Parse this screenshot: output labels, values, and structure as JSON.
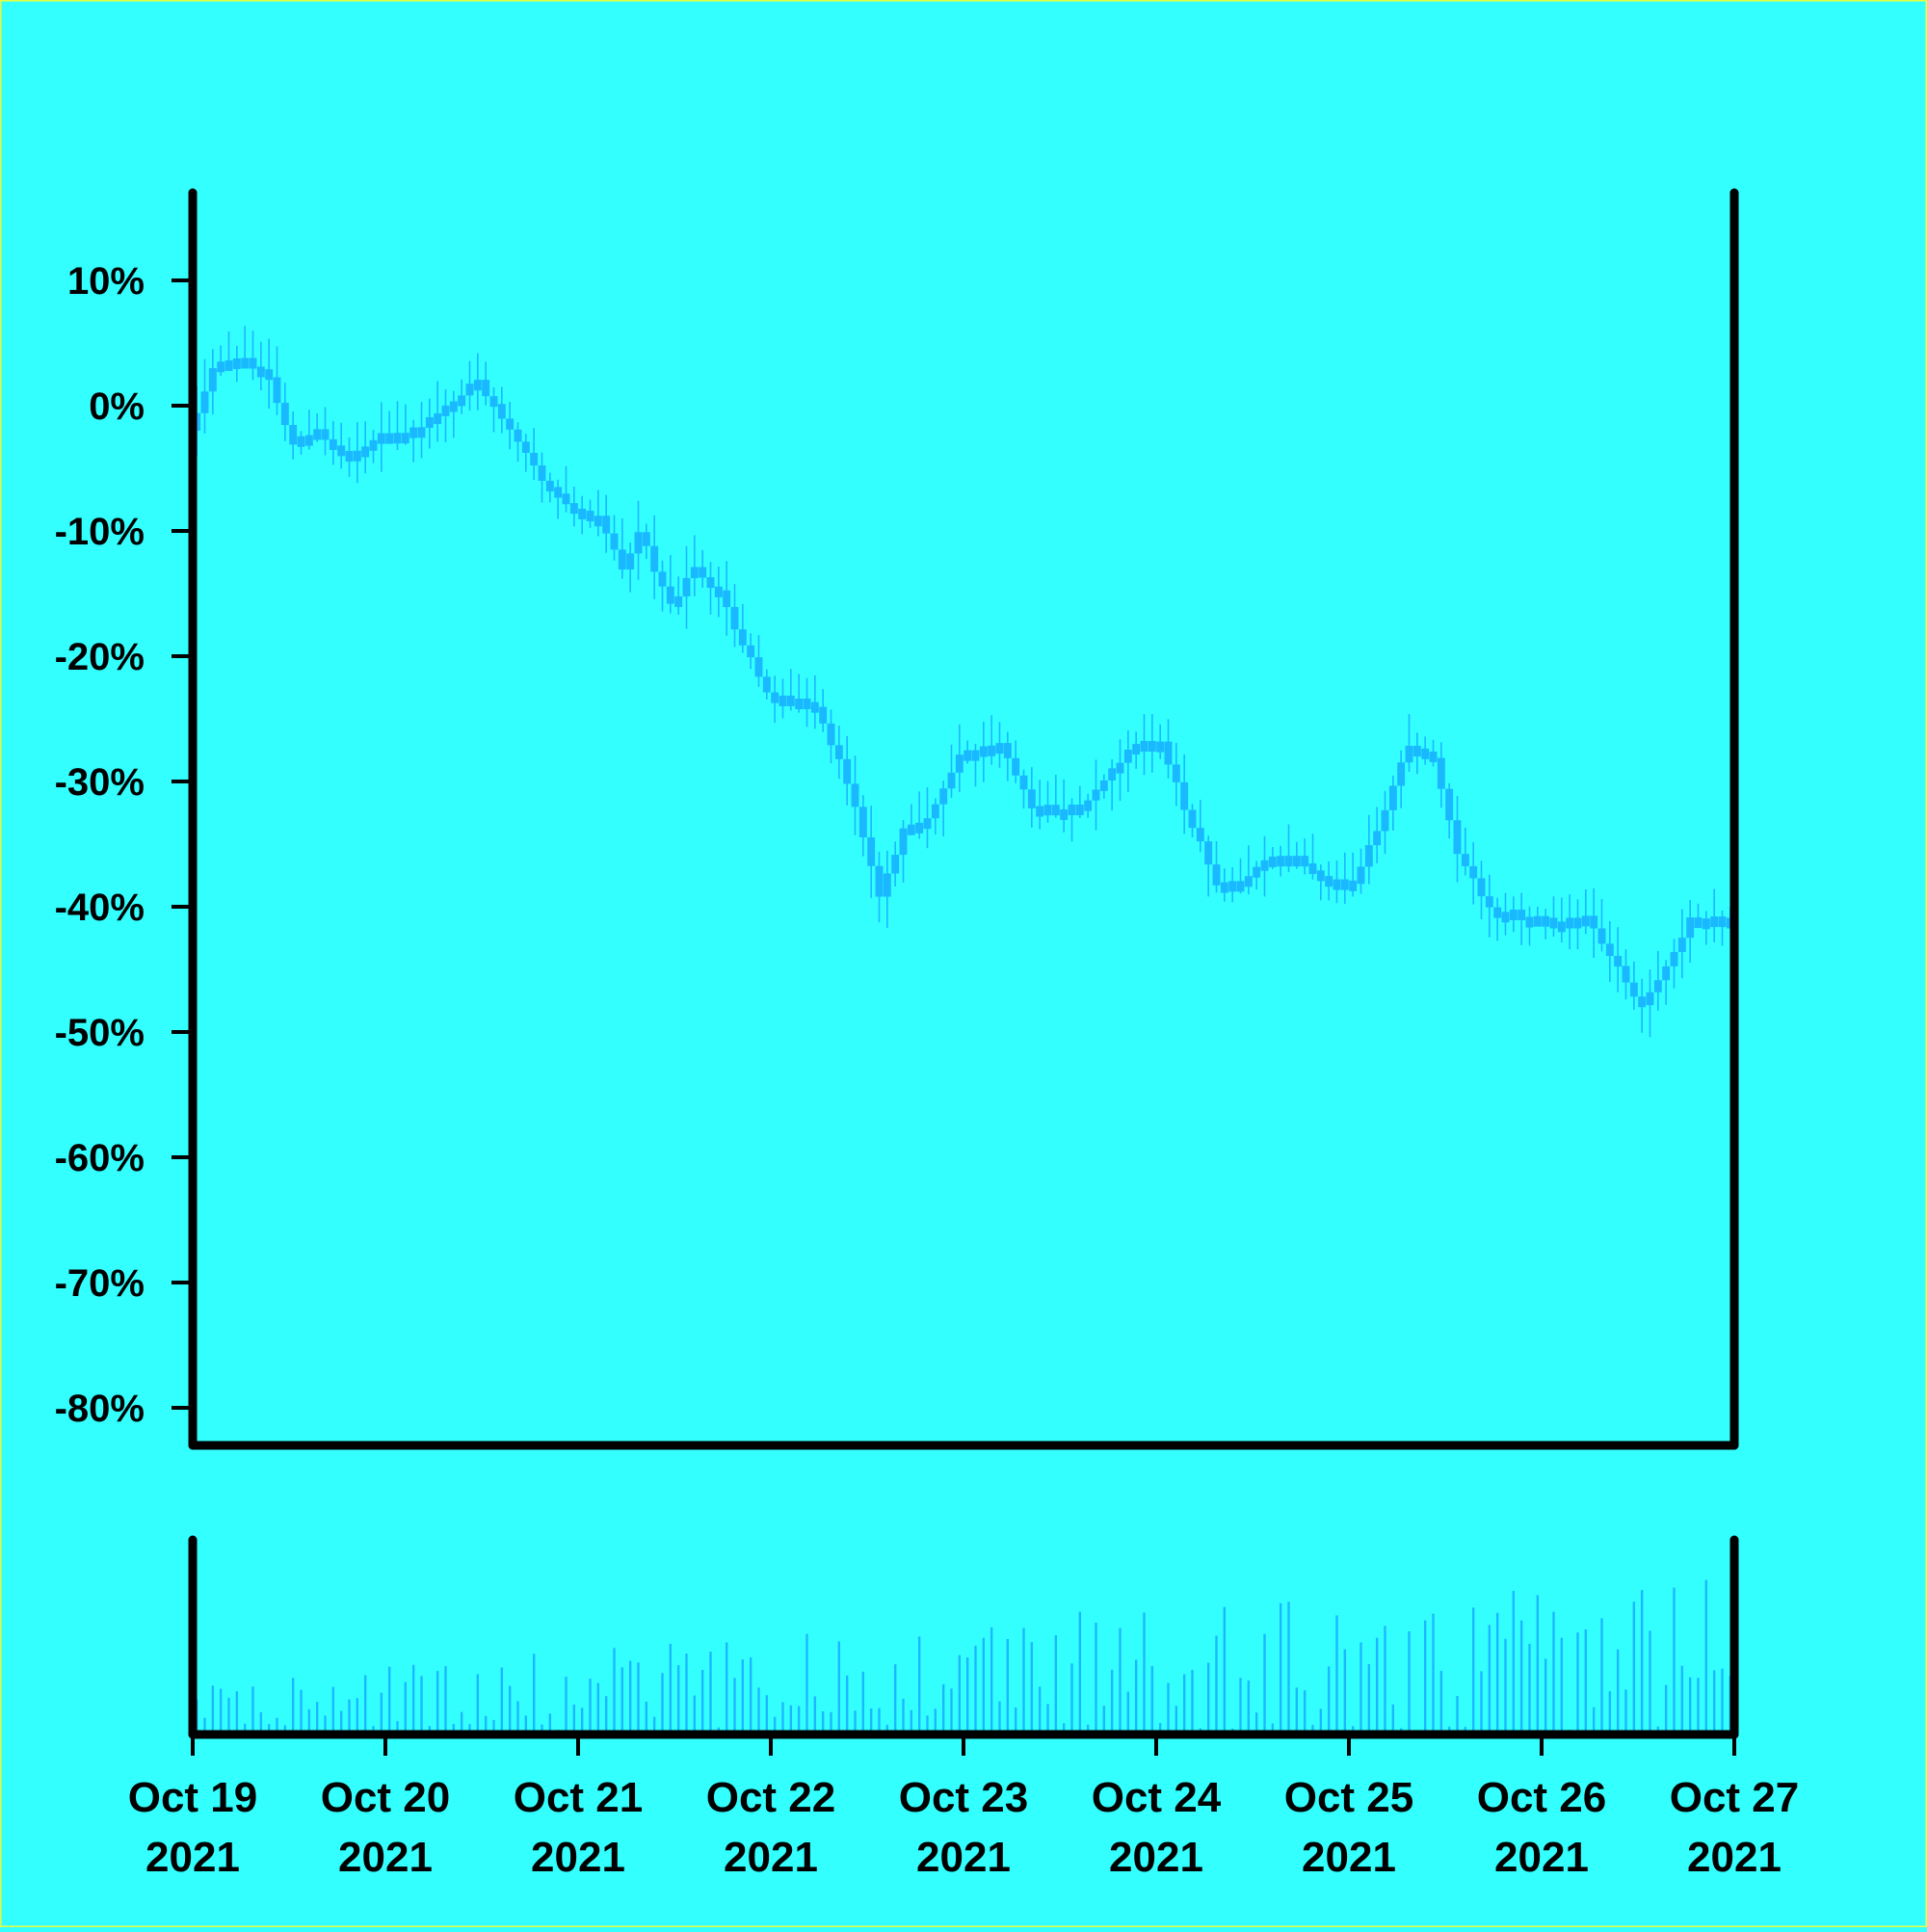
{
  "chart_data": {
    "type": "candlestick",
    "title": "",
    "xlabel": "",
    "ylabel": "",
    "background": "#33ffff",
    "candle_color": "#1ab8ff",
    "axis_color": "#000000",
    "y_axis": {
      "ylim": [
        -83,
        17
      ],
      "ticks": [
        10,
        0,
        -10,
        -20,
        -30,
        -40,
        -50,
        -60,
        -70,
        -80
      ],
      "tick_labels": [
        "10%",
        "0%",
        "-10%",
        "-20%",
        "-30%",
        "-40%",
        "-50%",
        "-60%",
        "-70%",
        "-80%"
      ]
    },
    "x_axis": {
      "start": "2021-10-19",
      "end": "2021-10-27",
      "tick_labels": [
        {
          "date": "2021-10-19",
          "line1": "Oct 19",
          "line2": "2021"
        },
        {
          "date": "2021-10-20",
          "line1": "Oct 20",
          "line2": "2021"
        },
        {
          "date": "2021-10-21",
          "line1": "Oct 21",
          "line2": "2021"
        },
        {
          "date": "2021-10-22",
          "line1": "Oct 22",
          "line2": "2021"
        },
        {
          "date": "2021-10-23",
          "line1": "Oct 23",
          "line2": "2021"
        },
        {
          "date": "2021-10-24",
          "line1": "Oct 24",
          "line2": "2021"
        },
        {
          "date": "2021-10-25",
          "line1": "Oct 25",
          "line2": "2021"
        },
        {
          "date": "2021-10-26",
          "line1": "Oct 26",
          "line2": "2021"
        },
        {
          "date": "2021-10-27",
          "line1": "Oct 27",
          "line2": "2021"
        }
      ]
    },
    "price_path": [
      [
        "2021-10-19T00:00",
        -2
      ],
      [
        "2021-10-19T03:00",
        3
      ],
      [
        "2021-10-19T07:00",
        4
      ],
      [
        "2021-10-19T10:00",
        2
      ],
      [
        "2021-10-19T13:00",
        -3
      ],
      [
        "2021-10-19T16:00",
        -2
      ],
      [
        "2021-10-19T20:00",
        -4
      ],
      [
        "2021-10-20T00:00",
        -2
      ],
      [
        "2021-10-20T04:00",
        -2
      ],
      [
        "2021-10-20T08:00",
        0
      ],
      [
        "2021-10-20T12:00",
        2
      ],
      [
        "2021-10-20T16:00",
        -2
      ],
      [
        "2021-10-20T20:00",
        -6
      ],
      [
        "2021-10-21T00:00",
        -8
      ],
      [
        "2021-10-21T03:00",
        -9
      ],
      [
        "2021-10-21T06:00",
        -13
      ],
      [
        "2021-10-21T08:00",
        -10
      ],
      [
        "2021-10-21T12:00",
        -16
      ],
      [
        "2021-10-21T15:00",
        -13
      ],
      [
        "2021-10-21T18:00",
        -15
      ],
      [
        "2021-10-21T21:00",
        -19
      ],
      [
        "2021-10-22T00:00",
        -23
      ],
      [
        "2021-10-22T06:00",
        -24
      ],
      [
        "2021-10-22T10:00",
        -30
      ],
      [
        "2021-10-22T14:00",
        -39
      ],
      [
        "2021-10-22T17:00",
        -34
      ],
      [
        "2021-10-22T20:00",
        -33
      ],
      [
        "2021-10-23T00:00",
        -28
      ],
      [
        "2021-10-23T05:00",
        -27
      ],
      [
        "2021-10-23T09:00",
        -32
      ],
      [
        "2021-10-23T12:00",
        -32
      ],
      [
        "2021-10-23T15:00",
        -32
      ],
      [
        "2021-10-23T18:00",
        -30
      ],
      [
        "2021-10-23T22:00",
        -27
      ],
      [
        "2021-10-24T01:00",
        -27
      ],
      [
        "2021-10-24T04:00",
        -32
      ],
      [
        "2021-10-24T08:00",
        -38
      ],
      [
        "2021-10-24T11:00",
        -38
      ],
      [
        "2021-10-24T14:00",
        -36
      ],
      [
        "2021-10-24T18:00",
        -36
      ],
      [
        "2021-10-24T22:00",
        -38
      ],
      [
        "2021-10-25T01:00",
        -38
      ],
      [
        "2021-10-25T04:00",
        -34
      ],
      [
        "2021-10-25T08:00",
        -27
      ],
      [
        "2021-10-25T11:00",
        -28
      ],
      [
        "2021-10-25T14:00",
        -36
      ],
      [
        "2021-10-25T18:00",
        -40
      ],
      [
        "2021-10-26T00:00",
        -41
      ],
      [
        "2021-10-26T06:00",
        -41
      ],
      [
        "2021-10-26T10:00",
        -45
      ],
      [
        "2021-10-26T13:00",
        -48
      ],
      [
        "2021-10-26T16:00",
        -45
      ],
      [
        "2021-10-26T19:00",
        -41
      ],
      [
        "2021-10-26T23:00",
        -41
      ]
    ]
  }
}
